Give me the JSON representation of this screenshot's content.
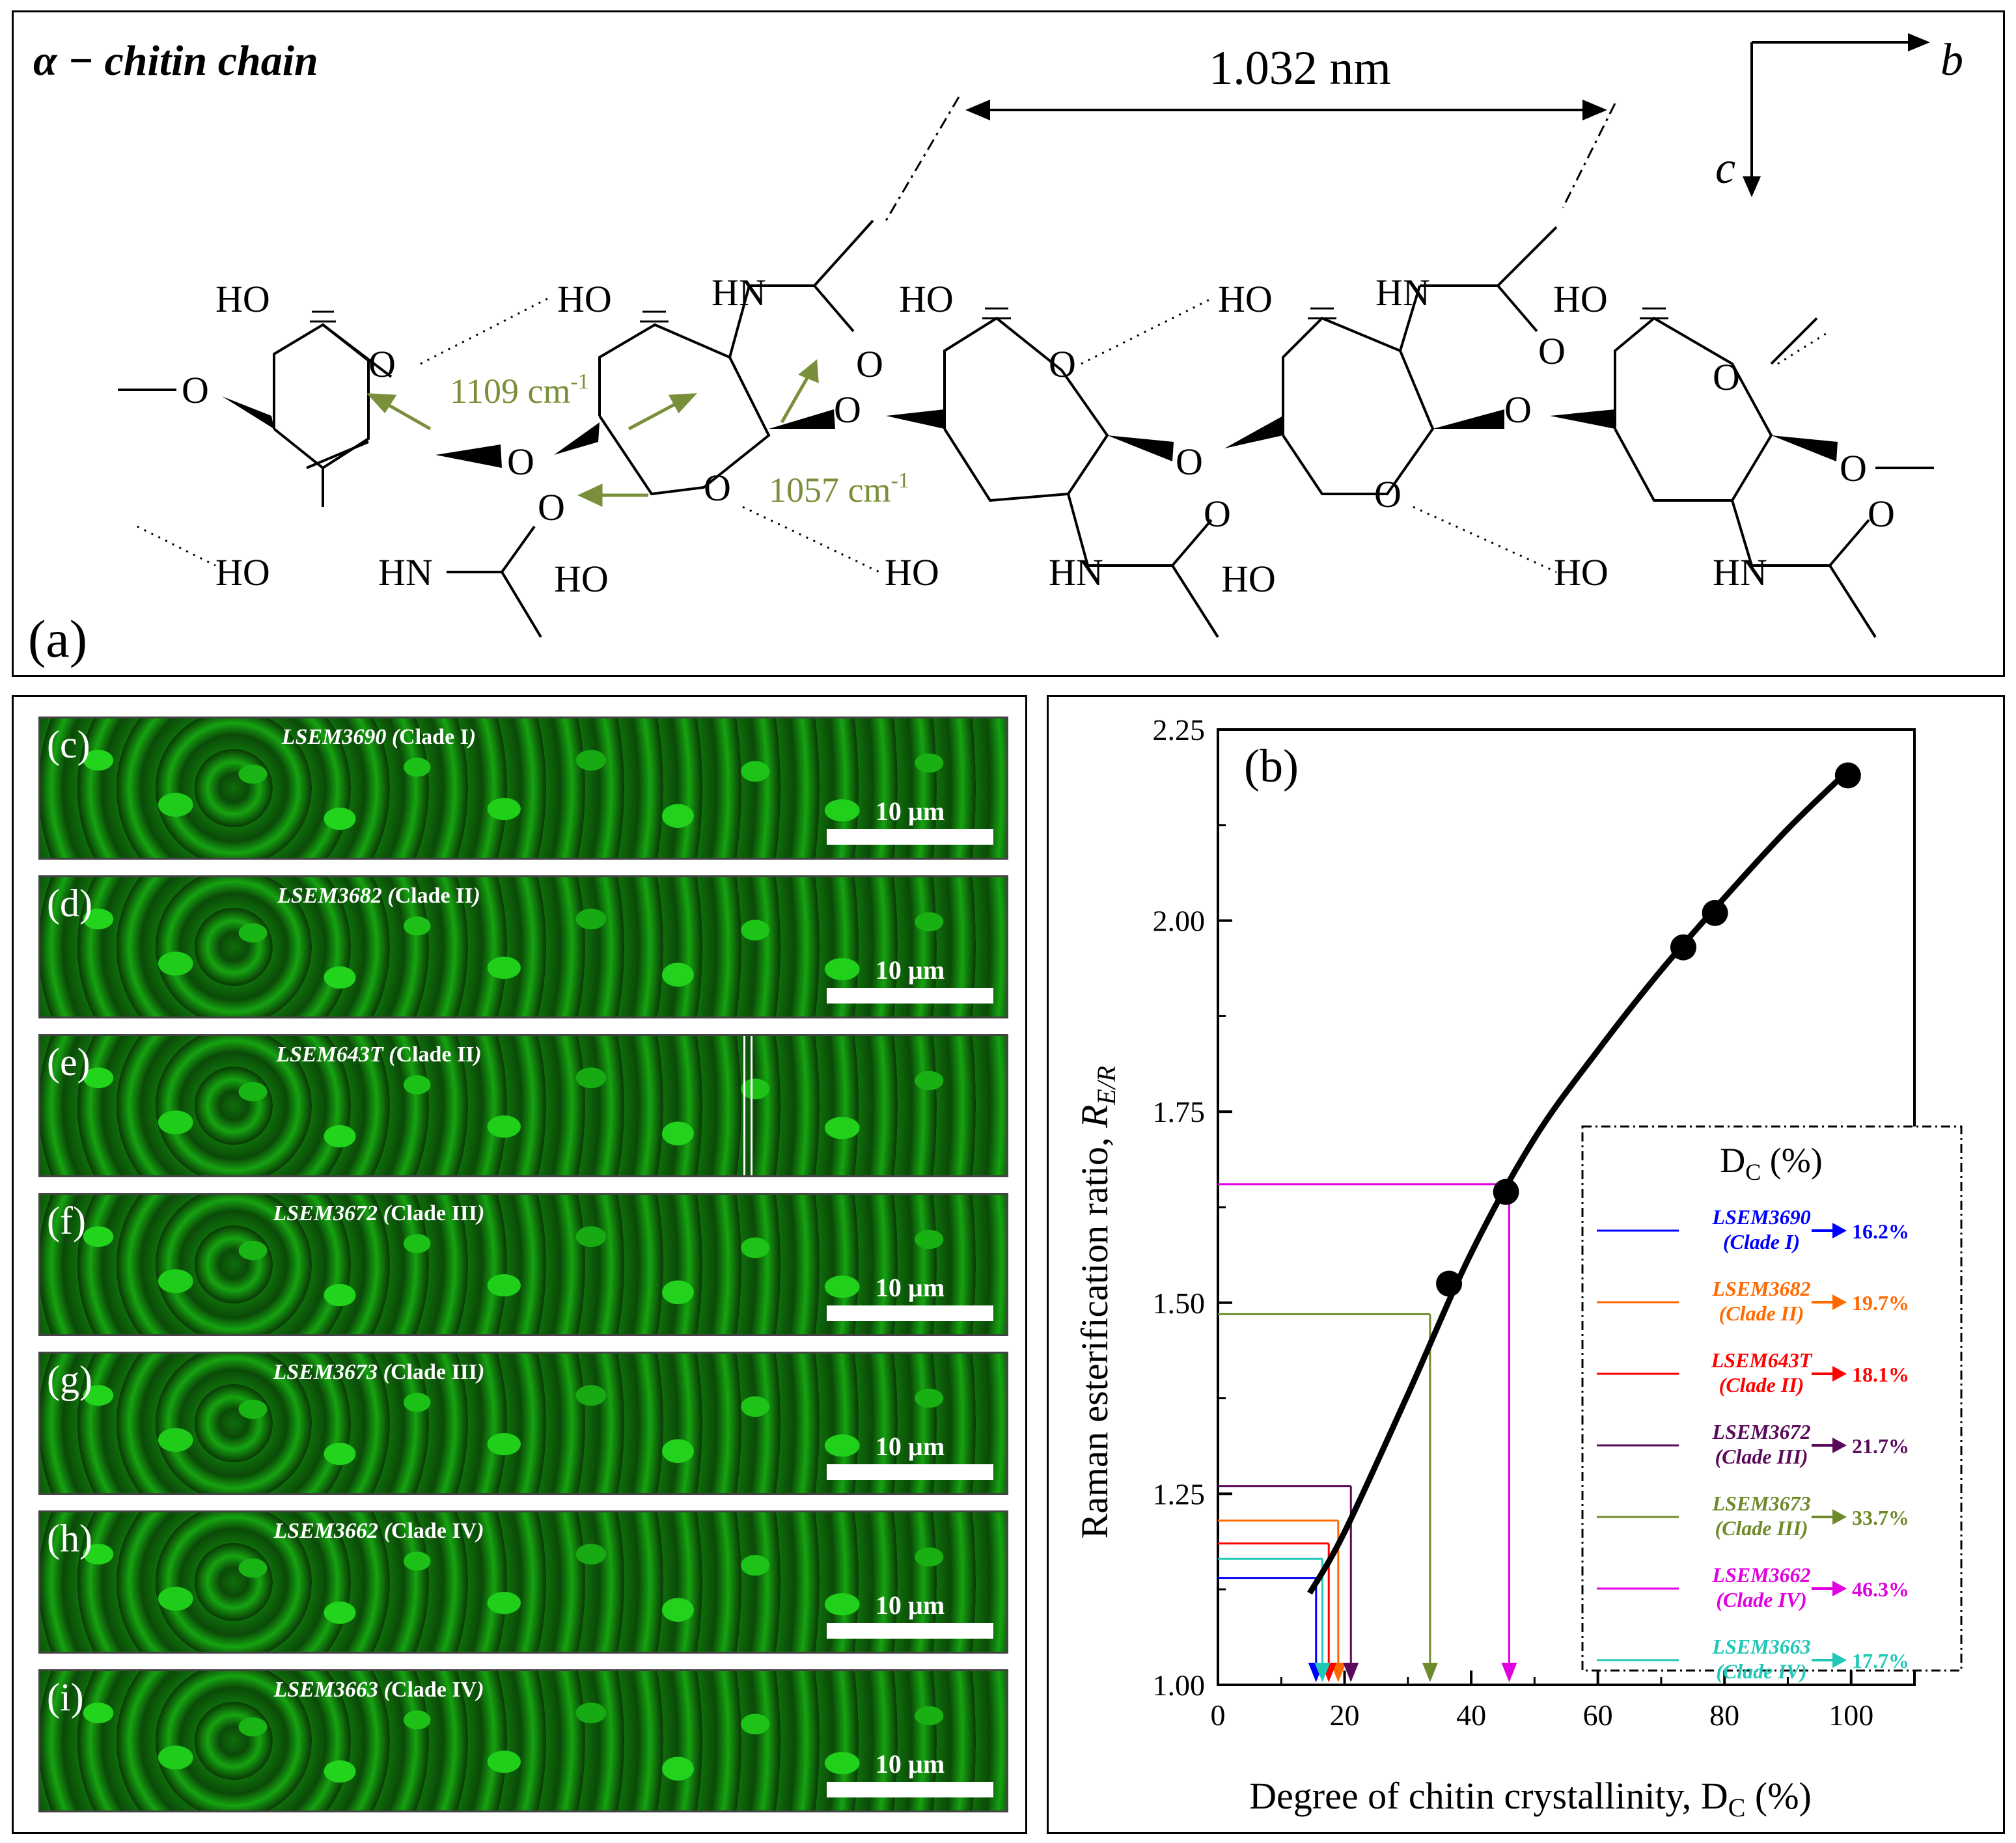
{
  "panel_a": {
    "title": "α − chitin chain",
    "letter": "(a)",
    "distance": "1.032 nm",
    "axis_b": "b",
    "axis_c": "c",
    "band_1109": "1109 cm",
    "band_1057": "1057 cm",
    "band_sup": "-1",
    "atoms": {
      "ho": "HO",
      "hn": "HN",
      "o": "O"
    }
  },
  "strips": [
    {
      "letter": "(c)",
      "name": "LSEM3690",
      "clade": "Clade I",
      "scale": "10 µm"
    },
    {
      "letter": "(d)",
      "name": "LSEM3682",
      "clade": "Clade II",
      "scale": "10 µm"
    },
    {
      "letter": "(e)",
      "name": "LSEM643T",
      "clade": "Clade II",
      "scale": "10 µm"
    },
    {
      "letter": "(f)",
      "name": "LSEM3672",
      "clade": "Clade III",
      "scale": "10 µm"
    },
    {
      "letter": "(g)",
      "name": "LSEM3673",
      "clade": "Clade III",
      "scale": "10 µm"
    },
    {
      "letter": "(h)",
      "name": "LSEM3662",
      "clade": "Clade IV",
      "scale": "10 µm"
    },
    {
      "letter": "(i)",
      "name": "LSEM3663",
      "clade": "Clade IV",
      "scale": "10 µm"
    }
  ],
  "chart_data": {
    "type": "scatter",
    "panel_letter": "(b)",
    "xlabel": "Degree of chitin crystallinity, D",
    "xlabel_sub": "C",
    "xlabel_end": " (%)",
    "ylabel": "Raman esterification ratio, ",
    "ylabel_sym": "R",
    "ylabel_sub": "E/R",
    "xlim": [
      0,
      110
    ],
    "ylim": [
      1.0,
      2.25
    ],
    "x_ticks": [
      0,
      20,
      40,
      60,
      80,
      100
    ],
    "y_ticks": [
      "1.00",
      "1.25",
      "1.50",
      "1.75",
      "2.00",
      "2.25"
    ],
    "points": [
      {
        "x": 36.5,
        "y": 1.525
      },
      {
        "x": 45.5,
        "y": 1.645
      },
      {
        "x": 73.5,
        "y": 1.965
      },
      {
        "x": 78.5,
        "y": 2.01
      },
      {
        "x": 99.5,
        "y": 2.19
      }
    ],
    "fit_curve": [
      {
        "x": 14.5,
        "y": 1.12
      },
      {
        "x": 20,
        "y": 1.2
      },
      {
        "x": 30,
        "y": 1.38
      },
      {
        "x": 40,
        "y": 1.565
      },
      {
        "x": 50,
        "y": 1.715
      },
      {
        "x": 60,
        "y": 1.83
      },
      {
        "x": 70,
        "y": 1.935
      },
      {
        "x": 80,
        "y": 2.03
      },
      {
        "x": 90,
        "y": 2.12
      },
      {
        "x": 100,
        "y": 2.2
      }
    ],
    "legend_title": "D",
    "legend_title_sub": "C",
    "legend_title_end": " (%)",
    "samples": [
      {
        "name": "LSEM3690",
        "clade": "(Clade I)",
        "dc": "16.2%",
        "x": 15.5,
        "y": 1.14,
        "color": "#0000ff"
      },
      {
        "name": "LSEM3682",
        "clade": "(Clade II)",
        "dc": "19.7%",
        "x": 19.0,
        "y": 1.215,
        "color": "#ff6a00"
      },
      {
        "name": "LSEM643T",
        "clade": "(Clade II)",
        "dc": "18.1%",
        "x": 17.5,
        "y": 1.185,
        "color": "#ff0000"
      },
      {
        "name": "LSEM3672",
        "clade": "(Clade III)",
        "dc": "21.7%",
        "x": 21.0,
        "y": 1.26,
        "color": "#5a0a5a"
      },
      {
        "name": "LSEM3673",
        "clade": "(Clade III)",
        "dc": "33.7%",
        "x": 33.5,
        "y": 1.485,
        "color": "#6f8a2a"
      },
      {
        "name": "LSEM3662",
        "clade": "(Clade IV)",
        "dc": "46.3%",
        "x": 46.0,
        "y": 1.655,
        "color": "#e000e0"
      },
      {
        "name": "LSEM3663",
        "clade": "(Clade IV)",
        "dc": "17.7%",
        "x": 16.5,
        "y": 1.165,
        "color": "#20c8b8"
      }
    ]
  }
}
